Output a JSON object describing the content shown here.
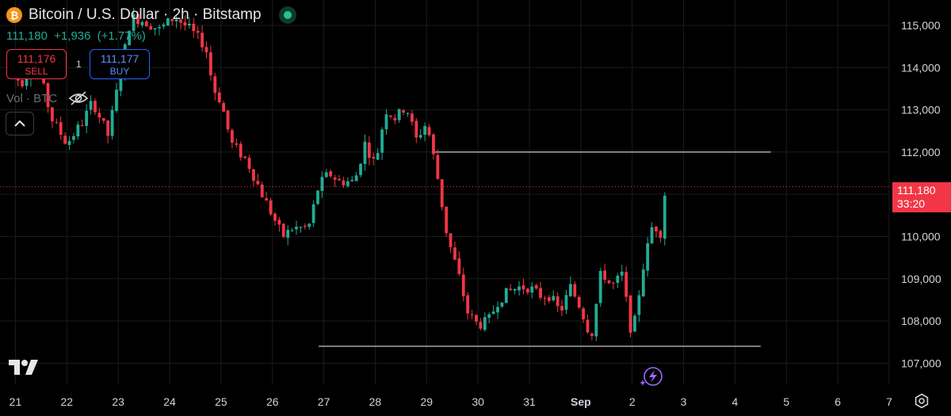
{
  "header": {
    "coin_symbol": "₿",
    "title": "Bitcoin / U.S. Dollar · 2h · Bitstamp",
    "last_price": "111,180",
    "change": "+1,936",
    "change_pct": "(+1.77%)"
  },
  "trade": {
    "sell_price": "111,176",
    "sell_label": "SELL",
    "spread": "1",
    "buy_price": "111,177",
    "buy_label": "BUY"
  },
  "volume_label": "Vol · BTC",
  "price_tag": {
    "price": "111,180",
    "countdown": "33:20"
  },
  "colors": {
    "up": "#22ab94",
    "down": "#f23645",
    "background": "#000000",
    "grid": "#1c1c1c"
  },
  "chart_data": {
    "type": "candlestick",
    "title": "Bitcoin / U.S. Dollar · 2h · Bitstamp",
    "x_tick_labels": [
      "21",
      "22",
      "23",
      "24",
      "25",
      "26",
      "27",
      "28",
      "29",
      "30",
      "31",
      "Sep",
      "2",
      "3",
      "4",
      "5",
      "6",
      "7"
    ],
    "y_ticks": [
      107000,
      108000,
      109000,
      110000,
      111000,
      112000,
      113000,
      114000,
      115000
    ],
    "y_tick_labels": [
      "107,000",
      "108,000",
      "109,000",
      "110,000",
      "111,000",
      "112,000",
      "113,000",
      "114,000",
      "115,000"
    ],
    "ylim": [
      106500,
      115600
    ],
    "x_range_days": [
      20.7,
      38.0
    ],
    "current_price": 111180,
    "levels": [
      {
        "price": 112000,
        "from_day": 29.1,
        "to_day": 35.7
      },
      {
        "price": 107400,
        "from_day": 26.9,
        "to_day": 35.5
      }
    ],
    "anchors": [
      [
        20.8,
        114300
      ],
      [
        21.1,
        113600
      ],
      [
        21.4,
        114200
      ],
      [
        21.7,
        112800
      ],
      [
        22.0,
        112200
      ],
      [
        22.3,
        112700
      ],
      [
        22.5,
        113200
      ],
      [
        22.8,
        112400
      ],
      [
        23.0,
        113600
      ],
      [
        23.25,
        115200
      ],
      [
        23.5,
        115100
      ],
      [
        23.8,
        114900
      ],
      [
        24.1,
        115200
      ],
      [
        24.4,
        114900
      ],
      [
        24.7,
        114500
      ],
      [
        24.85,
        113500
      ],
      [
        25.0,
        113200
      ],
      [
        25.2,
        112200
      ],
      [
        25.5,
        111800
      ],
      [
        25.8,
        111000
      ],
      [
        26.0,
        110500
      ],
      [
        26.2,
        110000
      ],
      [
        26.4,
        110200
      ],
      [
        26.7,
        110200
      ],
      [
        26.9,
        111200
      ],
      [
        27.1,
        111500
      ],
      [
        27.3,
        111300
      ],
      [
        27.6,
        111300
      ],
      [
        27.8,
        112200
      ],
      [
        28.0,
        111700
      ],
      [
        28.2,
        113000
      ],
      [
        28.4,
        112800
      ],
      [
        28.6,
        113100
      ],
      [
        28.8,
        112300
      ],
      [
        29.0,
        112700
      ],
      [
        29.2,
        111500
      ],
      [
        29.4,
        110000
      ],
      [
        29.6,
        109200
      ],
      [
        29.8,
        108200
      ],
      [
        30.0,
        107900
      ],
      [
        30.2,
        108000
      ],
      [
        30.4,
        108500
      ],
      [
        30.6,
        108700
      ],
      [
        30.8,
        108800
      ],
      [
        31.0,
        108800
      ],
      [
        31.2,
        108600
      ],
      [
        31.4,
        108600
      ],
      [
        31.6,
        108200
      ],
      [
        31.8,
        108800
      ],
      [
        32.0,
        108300
      ],
      [
        32.2,
        107600
      ],
      [
        32.4,
        109200
      ],
      [
        32.6,
        108800
      ],
      [
        32.8,
        109100
      ],
      [
        33.0,
        107600
      ],
      [
        33.2,
        109200
      ],
      [
        33.4,
        110300
      ],
      [
        33.55,
        110100
      ],
      [
        33.65,
        111200
      ]
    ]
  }
}
